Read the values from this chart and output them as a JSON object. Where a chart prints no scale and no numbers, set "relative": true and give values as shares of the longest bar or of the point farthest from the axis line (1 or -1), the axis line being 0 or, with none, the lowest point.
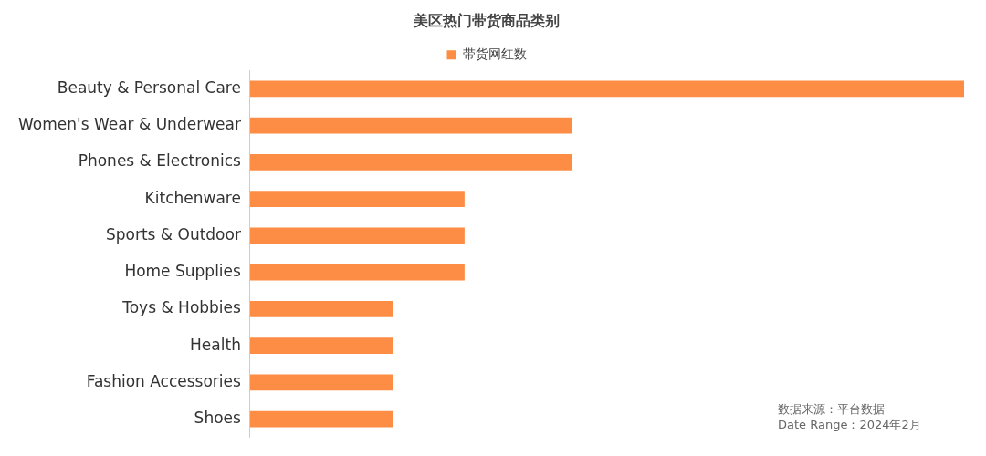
{
  "chart_data": {
    "type": "bar",
    "orientation": "horizontal",
    "relative": true,
    "title": "美区热门带货商品类别",
    "categories": [
      "Beauty & Personal Care",
      "Women's Wear & Underwear",
      "Phones & Electronics",
      "Kitchenware",
      "Sports & Outdoor",
      "Home Supplies",
      "Toys & Hobbies",
      "Health",
      "Fashion Accessories",
      "Shoes"
    ],
    "series": [
      {
        "name": "带货网红数",
        "color": "#fd8c45",
        "values": [
          1,
          0.45,
          0.45,
          0.3,
          0.3,
          0.3,
          0.2,
          0.2,
          0.2,
          0.2
        ]
      }
    ],
    "legend": "top",
    "grid": false,
    "annotations": [
      "数据来源：平台数据",
      "Date Range：2024年2月"
    ]
  }
}
